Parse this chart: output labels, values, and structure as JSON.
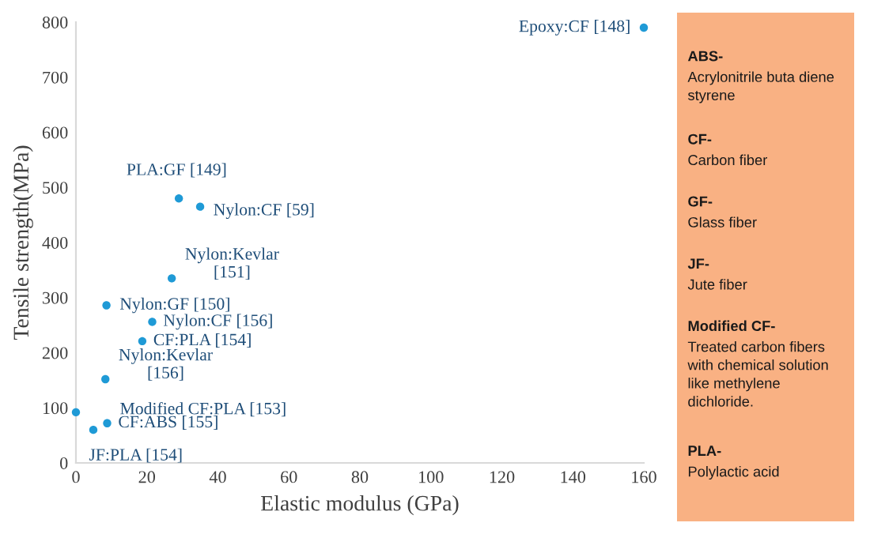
{
  "chart_data": [
    {
      "type": "scatter",
      "xlabel": "Elastic modulus (GPa)",
      "ylabel": "Tensile strength(MPa)",
      "x": [
        160,
        29,
        35,
        27,
        8.6,
        21.5,
        18.7,
        8.3,
        0,
        8.8,
        4.9
      ],
      "series": [
        {
          "color": "#1f9ad6",
          "values": [
            790,
            480,
            465,
            335,
            286,
            256,
            221,
            152,
            92,
            72,
            60
          ]
        }
      ],
      "xlim": [
        0,
        160
      ],
      "xticks": [
        0,
        20,
        40,
        60,
        80,
        100,
        120,
        140,
        160
      ],
      "ylim": [
        0,
        800
      ],
      "yticks": [
        0,
        100,
        200,
        300,
        400,
        500,
        600,
        700,
        800
      ],
      "grid": false,
      "marker": "circle",
      "legend": false,
      "annotations": [
        {
          "text": "Epoxy:CF [148]",
          "x": 160,
          "y": 790
        },
        {
          "text": "PLA:GF [149]",
          "x": 29,
          "y": 480
        },
        {
          "text": "Nylon:CF [59]",
          "x": 35,
          "y": 465
        },
        {
          "text": "Nylon:Kevlar\n[151]",
          "x": 27,
          "y": 335
        },
        {
          "text": "Nylon:GF [150]",
          "x": 8.6,
          "y": 286
        },
        {
          "text": "Nylon:CF [156]",
          "x": 21.5,
          "y": 256
        },
        {
          "text": "CF:PLA [154]",
          "x": 18.7,
          "y": 221
        },
        {
          "text": "Nylon:Kevlar\n[156]",
          "x": 8.3,
          "y": 152
        },
        {
          "text": "Modified CF:PLA [153]",
          "x": 0,
          "y": 92
        },
        {
          "text": "CF:ABS [155]",
          "x": 8.8,
          "y": 72
        },
        {
          "text": "JF:PLA [154]",
          "x": 4.9,
          "y": 60
        }
      ]
    },
    {
      "type": "other",
      "annotations": [
        "ABS-",
        "Acrylonitrile buta diene\nstyrene",
        "CF-",
        "Carbon fiber",
        "GF-",
        "Glass fiber",
        "JF-",
        "Jute fiber",
        "Modified CF-",
        "Treated carbon fibers\nwith chemical solution\nlike methylene\ndichloride.",
        "PLA-",
        "Polylactic acid"
      ]
    }
  ]
}
